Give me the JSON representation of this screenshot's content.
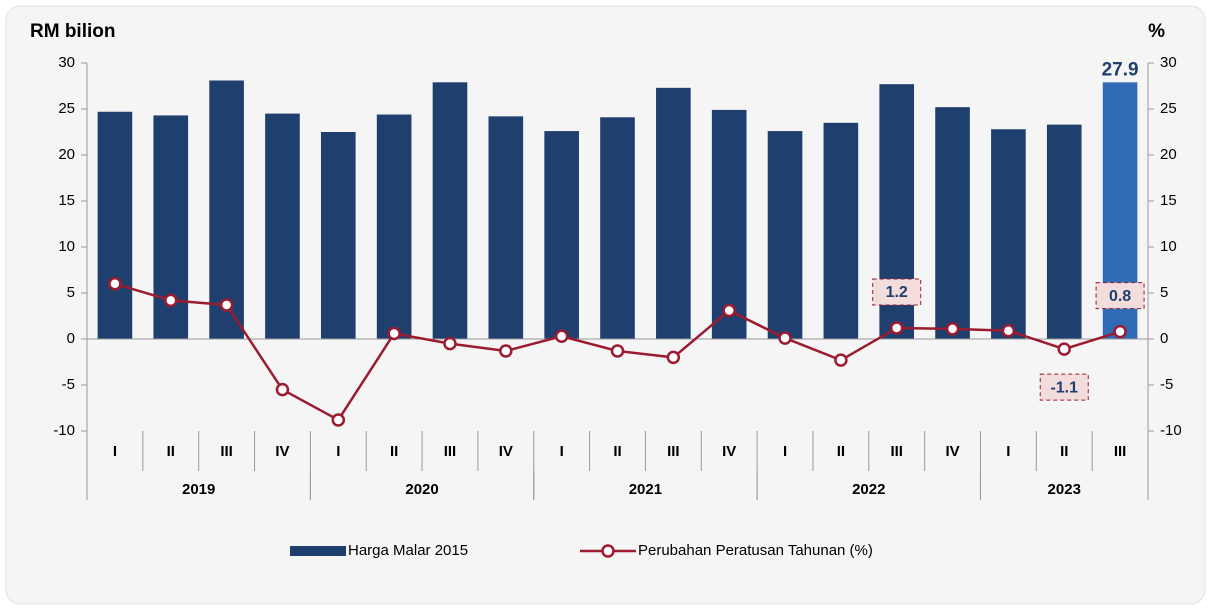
{
  "chart_data": {
    "type": "bar_line",
    "y_label": "RM bilion",
    "y2_label": "%",
    "categories": [
      "I",
      "II",
      "III",
      "IV",
      "I",
      "II",
      "III",
      "IV",
      "I",
      "II",
      "III",
      "IV",
      "I",
      "II",
      "III",
      "IV",
      "I",
      "II",
      "III"
    ],
    "groups": [
      {
        "name": "2019",
        "count": 4
      },
      {
        "name": "2020",
        "count": 4
      },
      {
        "name": "2021",
        "count": 4
      },
      {
        "name": "2022",
        "count": 4
      },
      {
        "name": "2023",
        "count": 3
      }
    ],
    "series": [
      {
        "name": "Harga Malar 2015",
        "kind": "bar",
        "color": "#1f3f6e",
        "highlight_color": "#2f6cb5",
        "highlight_index": 18,
        "values": [
          24.7,
          24.3,
          28.1,
          24.5,
          22.5,
          24.4,
          27.9,
          24.2,
          22.6,
          24.1,
          27.3,
          24.9,
          22.6,
          23.5,
          27.7,
          25.2,
          22.8,
          23.3,
          27.9
        ],
        "value_labels": [
          null,
          null,
          null,
          null,
          null,
          null,
          null,
          null,
          null,
          null,
          null,
          null,
          null,
          null,
          null,
          null,
          null,
          null,
          "27.9"
        ]
      },
      {
        "name": "Perubahan Peratusan Tahunan (%)",
        "kind": "line",
        "axis": "y2",
        "color": "#9b1b30",
        "values": [
          6.0,
          4.2,
          3.7,
          -5.5,
          -8.8,
          0.6,
          -0.5,
          -1.3,
          0.3,
          -1.3,
          -2.0,
          3.1,
          0.1,
          -2.3,
          1.2,
          1.1,
          0.9,
          -1.1,
          0.8
        ],
        "value_labels": [
          null,
          null,
          null,
          null,
          null,
          null,
          null,
          null,
          null,
          null,
          null,
          null,
          null,
          null,
          "1.2",
          null,
          null,
          "-1.1",
          "0.8"
        ]
      }
    ],
    "ylim": [
      -10,
      30
    ],
    "yticks": [
      -10,
      -5,
      0,
      5,
      10,
      15,
      20,
      25,
      30
    ],
    "y2lim": [
      -10,
      30
    ],
    "y2ticks": [
      -10,
      -5,
      0,
      5,
      10,
      15,
      20,
      25,
      30
    ]
  }
}
